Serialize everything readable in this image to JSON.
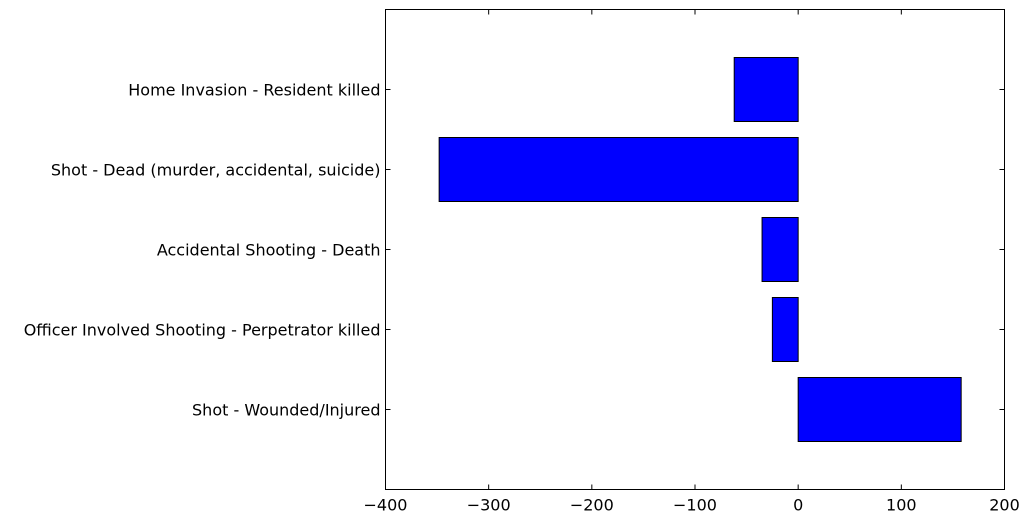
{
  "chart_data": {
    "type": "bar",
    "orientation": "horizontal",
    "categories": [
      "Home Invasion - Resident killed",
      "Shot - Dead (murder, accidental, suicide)",
      "Accidental Shooting - Death",
      "Officer Involved Shooting - Perpetrator killed",
      "Shot - Wounded/Injured"
    ],
    "values": [
      -62,
      -348,
      -35,
      -25,
      158
    ],
    "xlim": [
      -400,
      200
    ],
    "xticks": [
      -400,
      -300,
      -200,
      -100,
      0,
      100,
      200
    ],
    "xtick_labels": [
      "−400",
      "−300",
      "−200",
      "−100",
      "0",
      "100",
      "200"
    ],
    "title": "",
    "xlabel": "",
    "ylabel": "",
    "grid": false,
    "legend": "none",
    "colors": {
      "bar_fill": "#0000ff",
      "bar_edge": "#000000",
      "axes": "#000000",
      "background": "#ffffff"
    }
  }
}
